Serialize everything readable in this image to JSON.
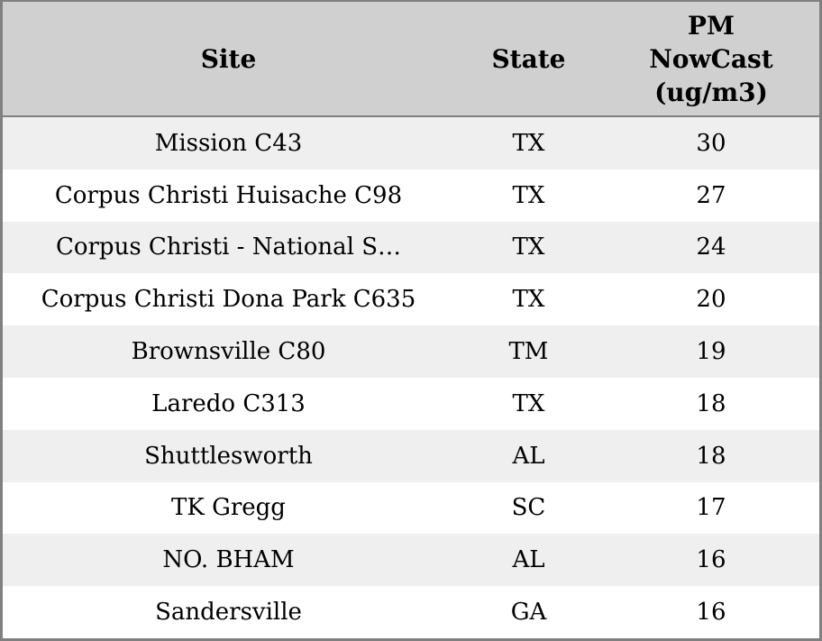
{
  "colors": {
    "border": "#808080",
    "header_bg": "#d0d0d0",
    "row_alt_bg": "#efefef",
    "row_bg": "#ffffff",
    "text": "#000000"
  },
  "table": {
    "header": {
      "site": "Site",
      "state": "State",
      "pm_lines": [
        "PM",
        "NowCast",
        "(ug/m3)"
      ]
    },
    "rows": [
      {
        "site": "Mission C43",
        "state": "TX",
        "value": "30"
      },
      {
        "site": "Corpus Christi Huisache C98",
        "state": "TX",
        "value": "27"
      },
      {
        "site": "Corpus Christi - National S…",
        "state": "TX",
        "value": "24"
      },
      {
        "site": "Corpus Christi Dona Park C635",
        "state": "TX",
        "value": "20"
      },
      {
        "site": "Brownsville C80",
        "state": "TM",
        "value": "19"
      },
      {
        "site": "Laredo C313",
        "state": "TX",
        "value": "18"
      },
      {
        "site": "Shuttlesworth",
        "state": "AL",
        "value": "18"
      },
      {
        "site": "TK Gregg",
        "state": "SC",
        "value": "17"
      },
      {
        "site": "NO. BHAM",
        "state": "AL",
        "value": "16"
      },
      {
        "site": "Sandersville",
        "state": "GA",
        "value": "16"
      }
    ]
  },
  "chart_data": {
    "type": "table",
    "title": "",
    "columns": [
      "Site",
      "State",
      "PM NowCast (ug/m3)"
    ],
    "rows": [
      [
        "Mission C43",
        "TX",
        30
      ],
      [
        "Corpus Christi Huisache C98",
        "TX",
        27
      ],
      [
        "Corpus Christi - National S…",
        "TX",
        24
      ],
      [
        "Corpus Christi Dona Park C635",
        "TX",
        20
      ],
      [
        "Brownsville C80",
        "TM",
        19
      ],
      [
        "Laredo C313",
        "TX",
        18
      ],
      [
        "Shuttlesworth",
        "AL",
        18
      ],
      [
        "TK Gregg",
        "SC",
        17
      ],
      [
        "NO. BHAM",
        "AL",
        16
      ],
      [
        "Sandersville",
        "GA",
        16
      ]
    ]
  }
}
